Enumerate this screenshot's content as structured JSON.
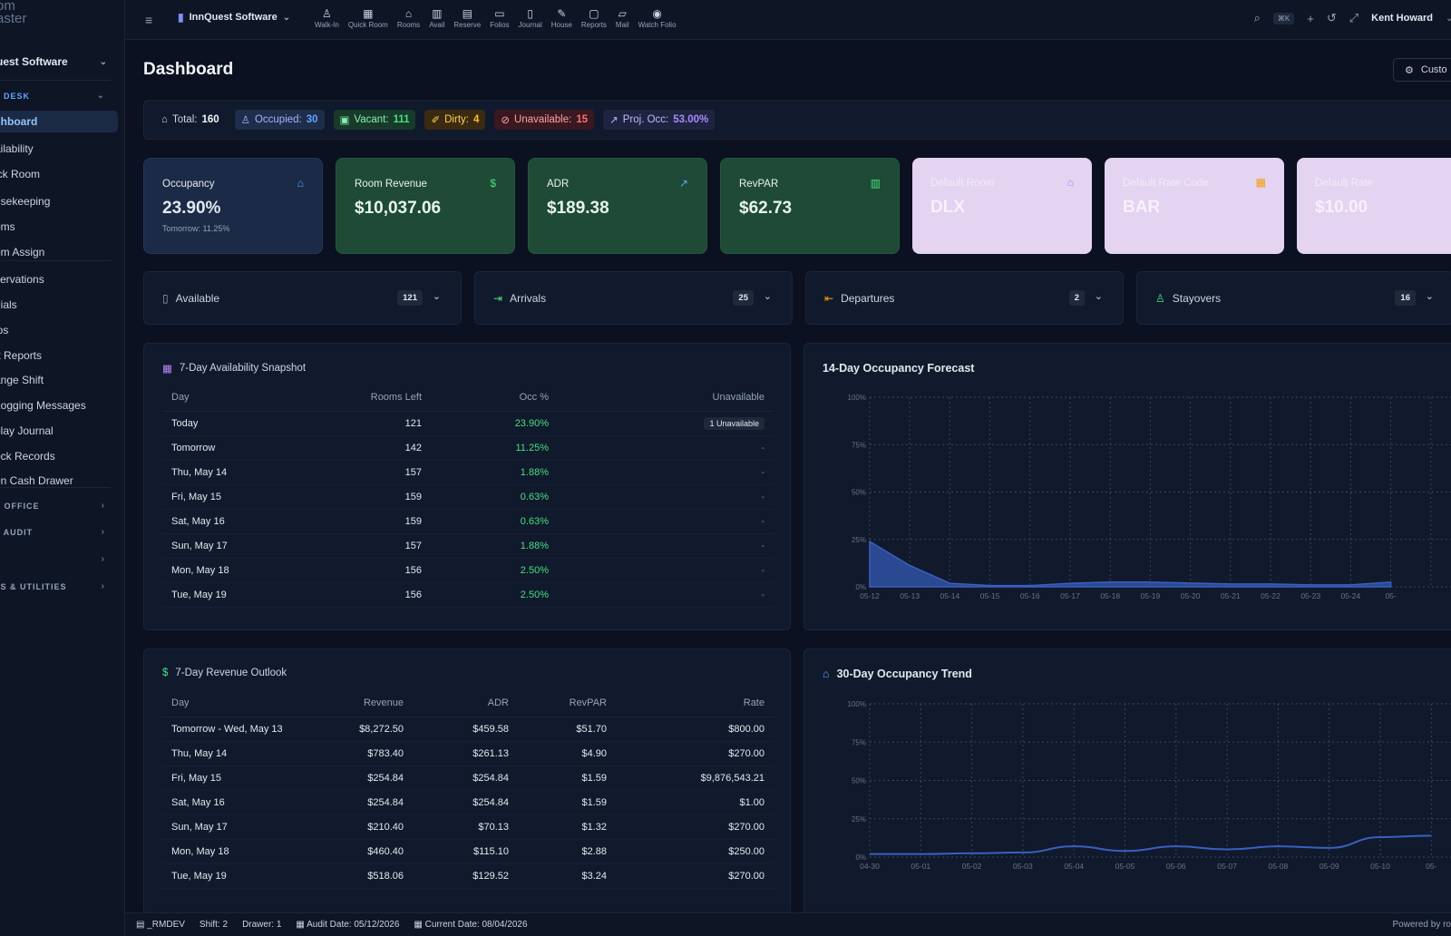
{
  "app": {
    "logo_line1": "om",
    "logo_line2": "aster"
  },
  "sidebar": {
    "company": "uest Software",
    "sections": [
      {
        "label": "T DESK",
        "active": true
      },
      {
        "label": "E OFFICE"
      },
      {
        "label": "T AUDIT"
      },
      {
        "label": "P"
      },
      {
        "label": "LS & UTILITIES"
      }
    ],
    "items": [
      {
        "label": "shboard",
        "active": true
      },
      {
        "label": "ailability"
      },
      {
        "label": "ick Room"
      },
      {
        "label": "usekeeping"
      },
      {
        "label": "oms"
      },
      {
        "label": "om Assign"
      },
      {
        "label": "servations"
      },
      {
        "label": "nials"
      },
      {
        "label": "ios"
      },
      {
        "label": "ft Reports"
      },
      {
        "label": "ange Shift"
      },
      {
        "label": "Logging Messages"
      },
      {
        "label": "play Journal"
      },
      {
        "label": "ock Records"
      },
      {
        "label": "en Cash Drawer"
      }
    ]
  },
  "topbar": {
    "property": "InnQuest Software",
    "tools": [
      {
        "icon": "walk-in-icon",
        "glyph": "♙",
        "label": "Walk-In"
      },
      {
        "icon": "quick-room-icon",
        "glyph": "▦",
        "label": "Quick Room"
      },
      {
        "icon": "rooms-icon",
        "glyph": "⌂",
        "label": "Rooms"
      },
      {
        "icon": "avail-icon",
        "glyph": "▥",
        "label": "Avail"
      },
      {
        "icon": "reserve-icon",
        "glyph": "▤",
        "label": "Reserve"
      },
      {
        "icon": "folios-icon",
        "glyph": "▭",
        "label": "Folios"
      },
      {
        "icon": "journal-icon",
        "glyph": "▯",
        "label": "Journal"
      },
      {
        "icon": "house-icon",
        "glyph": "✎",
        "label": "House"
      },
      {
        "icon": "reports-icon",
        "glyph": "▢",
        "label": "Reports"
      },
      {
        "icon": "mail-icon",
        "glyph": "▱",
        "label": "Mail"
      },
      {
        "icon": "watch-folio-icon",
        "glyph": "◉",
        "label": "Watch Folio"
      }
    ],
    "shortcut": "⌘K",
    "user": "Kent Howard"
  },
  "page": {
    "title": "Dashboard",
    "customize": "Custo"
  },
  "stats": {
    "total_label": "Total:",
    "total": "160",
    "occupied_label": "Occupied:",
    "occupied": "30",
    "vacant_label": "Vacant:",
    "vacant": "111",
    "dirty_label": "Dirty:",
    "dirty": "4",
    "unavailable_label": "Unavailable:",
    "unavailable": "15",
    "proj_label": "Proj. Occ:",
    "proj": "53.00%"
  },
  "kpis": [
    {
      "label": "Occupancy",
      "value": "23.90%",
      "sub": "Tomorrow: 11.25%",
      "icon": "bed-icon",
      "glyph": "⌂",
      "style": "dark",
      "icon_color": "#60a5fa"
    },
    {
      "label": "Room Revenue",
      "value": "$10,037.06",
      "sub": "",
      "icon": "dollar-icon",
      "glyph": "$",
      "style": "green",
      "icon_color": "#4ade80"
    },
    {
      "label": "ADR",
      "value": "$189.38",
      "sub": "",
      "icon": "trending-up-icon",
      "glyph": "↗",
      "style": "green",
      "icon_color": "#60a5fa"
    },
    {
      "label": "RevPAR",
      "value": "$62.73",
      "sub": "",
      "icon": "bar-chart-icon",
      "glyph": "▥",
      "style": "green",
      "icon_color": "#4ade80"
    },
    {
      "label": "Default Room",
      "value": "DLX",
      "sub": "",
      "icon": "bed-icon",
      "glyph": "⌂",
      "style": "lav",
      "icon_color": "#a78bfa"
    },
    {
      "label": "Default Rate Code",
      "value": "BAR",
      "sub": "",
      "icon": "calendar-icon",
      "glyph": "▦",
      "style": "lav",
      "icon_color": "#f59e0b"
    },
    {
      "label": "Default Rate",
      "value": "$10.00",
      "sub": "",
      "icon": "",
      "glyph": "",
      "style": "lav",
      "icon_color": "#a78bfa"
    }
  ],
  "counts": [
    {
      "label": "Available",
      "value": "121",
      "icon": "building-icon",
      "glyph": "▯",
      "color": "#94a3b8"
    },
    {
      "label": "Arrivals",
      "value": "25",
      "icon": "arrival-icon",
      "glyph": "⇥",
      "color": "#4ade80"
    },
    {
      "label": "Departures",
      "value": "2",
      "icon": "departure-icon",
      "glyph": "⇤",
      "color": "#f59e0b"
    },
    {
      "label": "Stayovers",
      "value": "16",
      "icon": "users-icon",
      "glyph": "♙",
      "color": "#4ade80"
    }
  ],
  "availability": {
    "title": "7-Day Availability Snapshot",
    "headers": [
      "Day",
      "Rooms Left",
      "Occ %",
      "Unavailable"
    ],
    "rows": [
      [
        "Today",
        "121",
        "23.90%",
        "1 Unavailable"
      ],
      [
        "Tomorrow",
        "142",
        "11.25%",
        "-"
      ],
      [
        "Thu, May 14",
        "157",
        "1.88%",
        "-"
      ],
      [
        "Fri, May 15",
        "159",
        "0.63%",
        "-"
      ],
      [
        "Sat, May 16",
        "159",
        "0.63%",
        "-"
      ],
      [
        "Sun, May 17",
        "157",
        "1.88%",
        "-"
      ],
      [
        "Mon, May 18",
        "156",
        "2.50%",
        "-"
      ],
      [
        "Tue, May 19",
        "156",
        "2.50%",
        "-"
      ]
    ]
  },
  "revenue": {
    "title": "7-Day Revenue Outlook",
    "headers": [
      "Day",
      "Revenue",
      "ADR",
      "RevPAR",
      "Rate"
    ],
    "rows": [
      [
        "Tomorrow - Wed, May 13",
        "$8,272.50",
        "$459.58",
        "$51.70",
        "$800.00"
      ],
      [
        "Thu, May 14",
        "$783.40",
        "$261.13",
        "$4.90",
        "$270.00"
      ],
      [
        "Fri, May 15",
        "$254.84",
        "$254.84",
        "$1.59",
        "$9,876,543.21"
      ],
      [
        "Sat, May 16",
        "$254.84",
        "$254.84",
        "$1.59",
        "$1.00"
      ],
      [
        "Sun, May 17",
        "$210.40",
        "$70.13",
        "$1.32",
        "$270.00"
      ],
      [
        "Mon, May 18",
        "$460.40",
        "$115.10",
        "$2.88",
        "$250.00"
      ],
      [
        "Tue, May 19",
        "$518.06",
        "$129.52",
        "$3.24",
        "$270.00"
      ]
    ]
  },
  "chart_data": [
    {
      "type": "area",
      "title": "14-Day Occupancy Forecast",
      "x": [
        "05-12",
        "05-13",
        "05-14",
        "05-15",
        "05-16",
        "05-17",
        "05-18",
        "05-19",
        "05-20",
        "05-21",
        "05-22",
        "05-23",
        "05-24",
        "05-"
      ],
      "series": [
        {
          "values": [
            23.9,
            11.25,
            1.88,
            0.63,
            0.63,
            1.88,
            2.5,
            2.5,
            2.0,
            1.5,
            1.5,
            1.0,
            1.0,
            2.5
          ]
        }
      ],
      "ylim": [
        0,
        100
      ],
      "yticks": [
        "0%",
        "25%",
        "50%",
        "75%",
        "100%"
      ],
      "grid": true,
      "color": "#2f4f9e"
    },
    {
      "type": "line",
      "title": "30-Day Occupancy Trend",
      "x": [
        "04-30",
        "05-01",
        "05-02",
        "05-03",
        "05-04",
        "05-05",
        "05-06",
        "05-07",
        "05-08",
        "05-09",
        "05-10",
        "05-"
      ],
      "series": [
        {
          "values": [
            2,
            2,
            2.5,
            3,
            7,
            4,
            7,
            5,
            7,
            6,
            13,
            14
          ]
        }
      ],
      "ylim": [
        0,
        100
      ],
      "yticks": [
        "0%",
        "25%",
        "50%",
        "75%",
        "100%"
      ],
      "grid": true,
      "color": "#3b5fc0"
    }
  ],
  "footer": {
    "db": "_RMDEV",
    "shift": "Shift: 2",
    "drawer": "Drawer: 1",
    "audit": "Audit Date: 05/12/2026",
    "current": "Current Date: 08/04/2026",
    "powered": "Powered by ro"
  }
}
